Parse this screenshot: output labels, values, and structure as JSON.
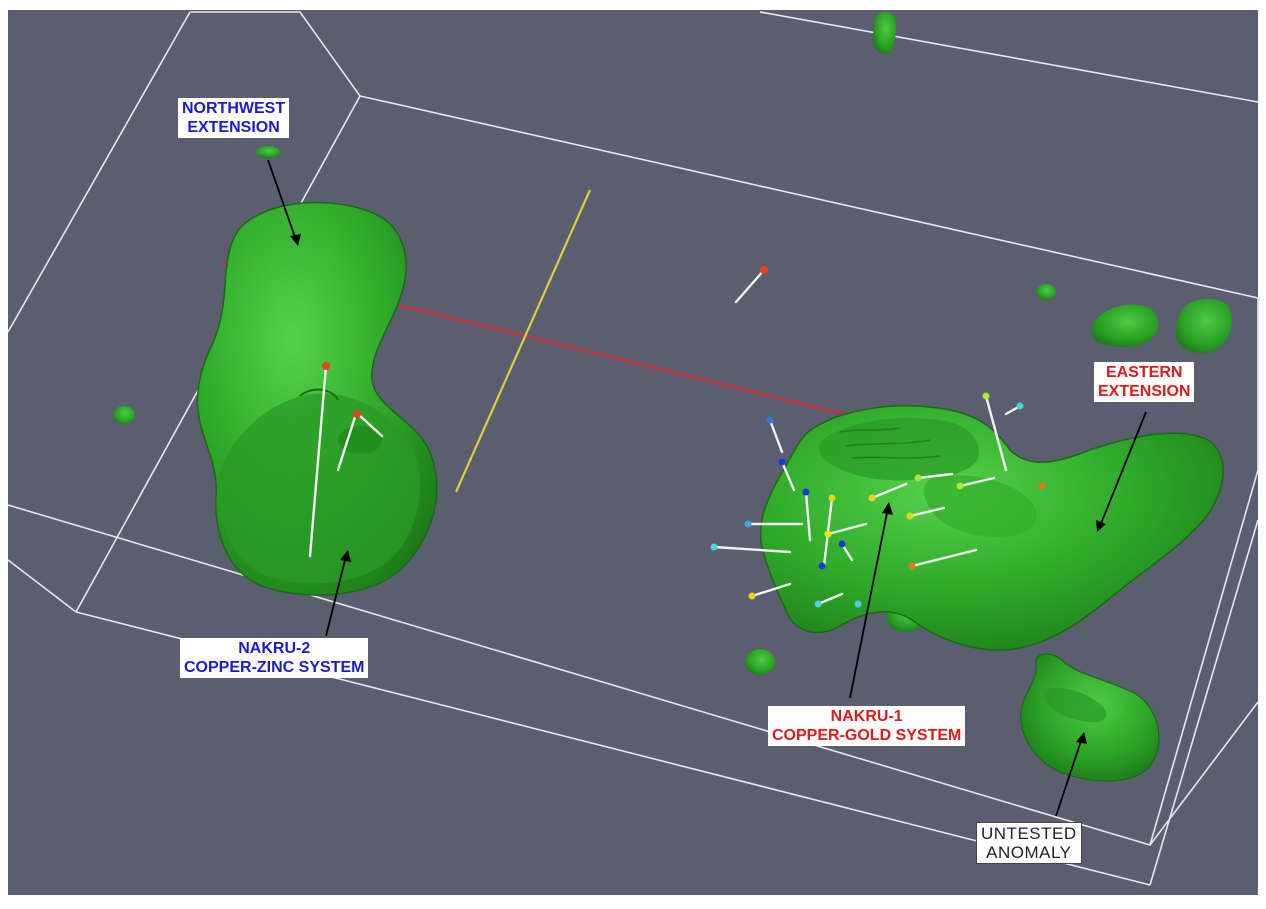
{
  "labels": {
    "northwest": {
      "line1": "NORTHWEST",
      "line2": "EXTENSION"
    },
    "nakru2": {
      "line1": "NAKRU-2",
      "line2": "COPPER-ZINC SYSTEM"
    },
    "eastern": {
      "line1": "EASTERN",
      "line2": "EXTENSION"
    },
    "nakru1": {
      "line1": "NAKRU-1",
      "line2": "COPPER-GOLD SYSTEM"
    },
    "untested": {
      "line1": "UNTESTED",
      "line2": "ANOMALY"
    }
  },
  "colors": {
    "background": "#5b5e6f",
    "anomaly": "#33b12a",
    "anomaly_dark": "#1e7d18",
    "wireframe": "#e6e6ee",
    "section_line": "#c0353a",
    "plan_line": "#d8cf3a",
    "label_blue": "#1a1ad6",
    "label_red": "#e01a1a"
  }
}
